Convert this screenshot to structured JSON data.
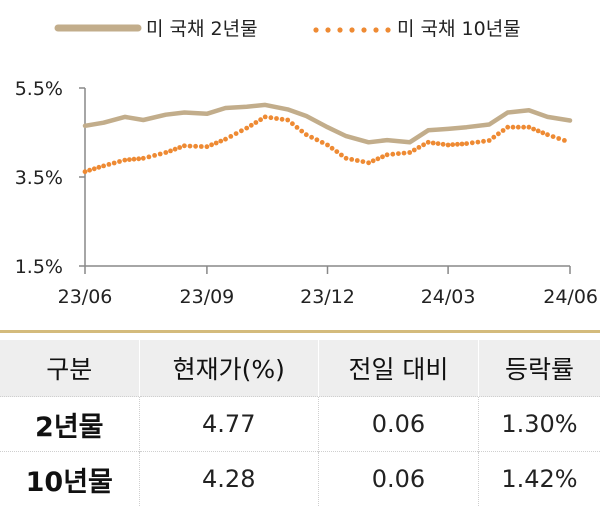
{
  "chart_data": {
    "type": "line",
    "x_ticks": [
      "23/06",
      "23/09",
      "23/12",
      "24/03",
      "24/06"
    ],
    "y_ticks": [
      "5.5%",
      "3.5%",
      "1.5%"
    ],
    "ylim": [
      1.5,
      5.5
    ],
    "grid": false,
    "legend_position": "top",
    "series": [
      {
        "name": "미 국채 2년물",
        "style": "solid",
        "color": "#c2ad8b",
        "x": [
          "2023-06-01",
          "2023-06-15",
          "2023-07-01",
          "2023-07-15",
          "2023-08-01",
          "2023-08-15",
          "2023-09-01",
          "2023-09-15",
          "2023-10-01",
          "2023-10-15",
          "2023-11-01",
          "2023-11-15",
          "2023-12-01",
          "2023-12-15",
          "2024-01-01",
          "2024-01-15",
          "2024-02-01",
          "2024-02-15",
          "2024-03-01",
          "2024-03-15",
          "2024-04-01",
          "2024-04-15",
          "2024-05-01",
          "2024-05-15",
          "2024-06-01"
        ],
        "y": [
          4.65,
          4.72,
          4.85,
          4.78,
          4.9,
          4.95,
          4.92,
          5.05,
          5.08,
          5.12,
          5.02,
          4.87,
          4.62,
          4.42,
          4.28,
          4.33,
          4.28,
          4.55,
          4.58,
          4.62,
          4.68,
          4.95,
          5.0,
          4.85,
          4.77
        ]
      },
      {
        "name": "미 국채 10년물",
        "style": "dotted",
        "color": "#ee8a33",
        "x": [
          "2023-06-01",
          "2023-06-15",
          "2023-07-01",
          "2023-07-15",
          "2023-08-01",
          "2023-08-15",
          "2023-09-01",
          "2023-09-15",
          "2023-10-01",
          "2023-10-15",
          "2023-11-01",
          "2023-11-15",
          "2023-12-01",
          "2023-12-15",
          "2024-01-01",
          "2024-01-15",
          "2024-02-01",
          "2024-02-15",
          "2024-03-01",
          "2024-03-15",
          "2024-04-01",
          "2024-04-15",
          "2024-05-01",
          "2024-05-15",
          "2024-06-01"
        ],
        "y": [
          3.62,
          3.75,
          3.88,
          3.92,
          4.05,
          4.2,
          4.18,
          4.35,
          4.6,
          4.85,
          4.78,
          4.45,
          4.22,
          3.92,
          3.82,
          4.0,
          4.05,
          4.28,
          4.22,
          4.25,
          4.32,
          4.62,
          4.62,
          4.45,
          4.28
        ]
      }
    ]
  },
  "table": {
    "headers": [
      "구분",
      "현재가(%)",
      "전일 대비",
      "등락률"
    ],
    "rows": [
      [
        "2년물",
        "4.77",
        "0.06",
        "1.30%"
      ],
      [
        "10년물",
        "4.28",
        "0.06",
        "1.42%"
      ]
    ]
  }
}
